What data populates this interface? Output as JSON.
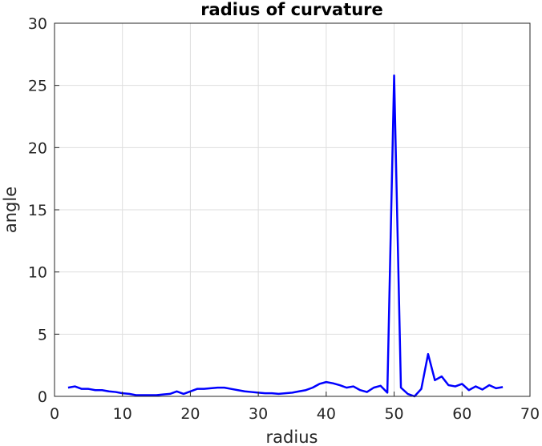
{
  "chart_data": {
    "type": "line",
    "title": "radius of curvature",
    "xlabel": "radius",
    "ylabel": "angle",
    "xlim": [
      0,
      70
    ],
    "ylim": [
      0,
      30
    ],
    "xticks": [
      0,
      10,
      20,
      30,
      40,
      50,
      60,
      70
    ],
    "yticks": [
      0,
      5,
      10,
      15,
      20,
      25,
      30
    ],
    "grid": true,
    "line_color": "#0000ff",
    "series": [
      {
        "x": [
          2,
          3,
          4,
          5,
          6,
          7,
          8,
          9,
          10,
          11,
          12,
          13,
          14,
          15,
          16,
          17,
          18,
          19,
          20,
          21,
          22,
          23,
          24,
          25,
          26,
          27,
          28,
          29,
          30,
          31,
          32,
          33,
          34,
          35,
          36,
          37,
          38,
          39,
          40,
          41,
          42,
          43,
          44,
          45,
          46,
          47,
          48,
          49,
          50,
          51,
          52,
          53,
          54,
          55,
          56,
          57,
          58,
          59,
          60,
          61,
          62,
          63,
          64,
          65,
          66
        ],
        "y": [
          0.7,
          0.8,
          0.6,
          0.6,
          0.5,
          0.5,
          0.4,
          0.35,
          0.25,
          0.2,
          0.1,
          0.1,
          0.1,
          0.1,
          0.15,
          0.2,
          0.4,
          0.2,
          0.4,
          0.6,
          0.6,
          0.65,
          0.7,
          0.7,
          0.6,
          0.5,
          0.4,
          0.35,
          0.3,
          0.25,
          0.25,
          0.2,
          0.25,
          0.3,
          0.4,
          0.5,
          0.7,
          1.0,
          1.15,
          1.05,
          0.9,
          0.7,
          0.8,
          0.5,
          0.35,
          0.7,
          0.85,
          0.3,
          25.8,
          0.7,
          0.2,
          0.0,
          0.6,
          3.4,
          1.3,
          1.6,
          0.9,
          0.8,
          1.0,
          0.5,
          0.8,
          0.55,
          0.9,
          0.65,
          0.75
        ]
      }
    ]
  }
}
